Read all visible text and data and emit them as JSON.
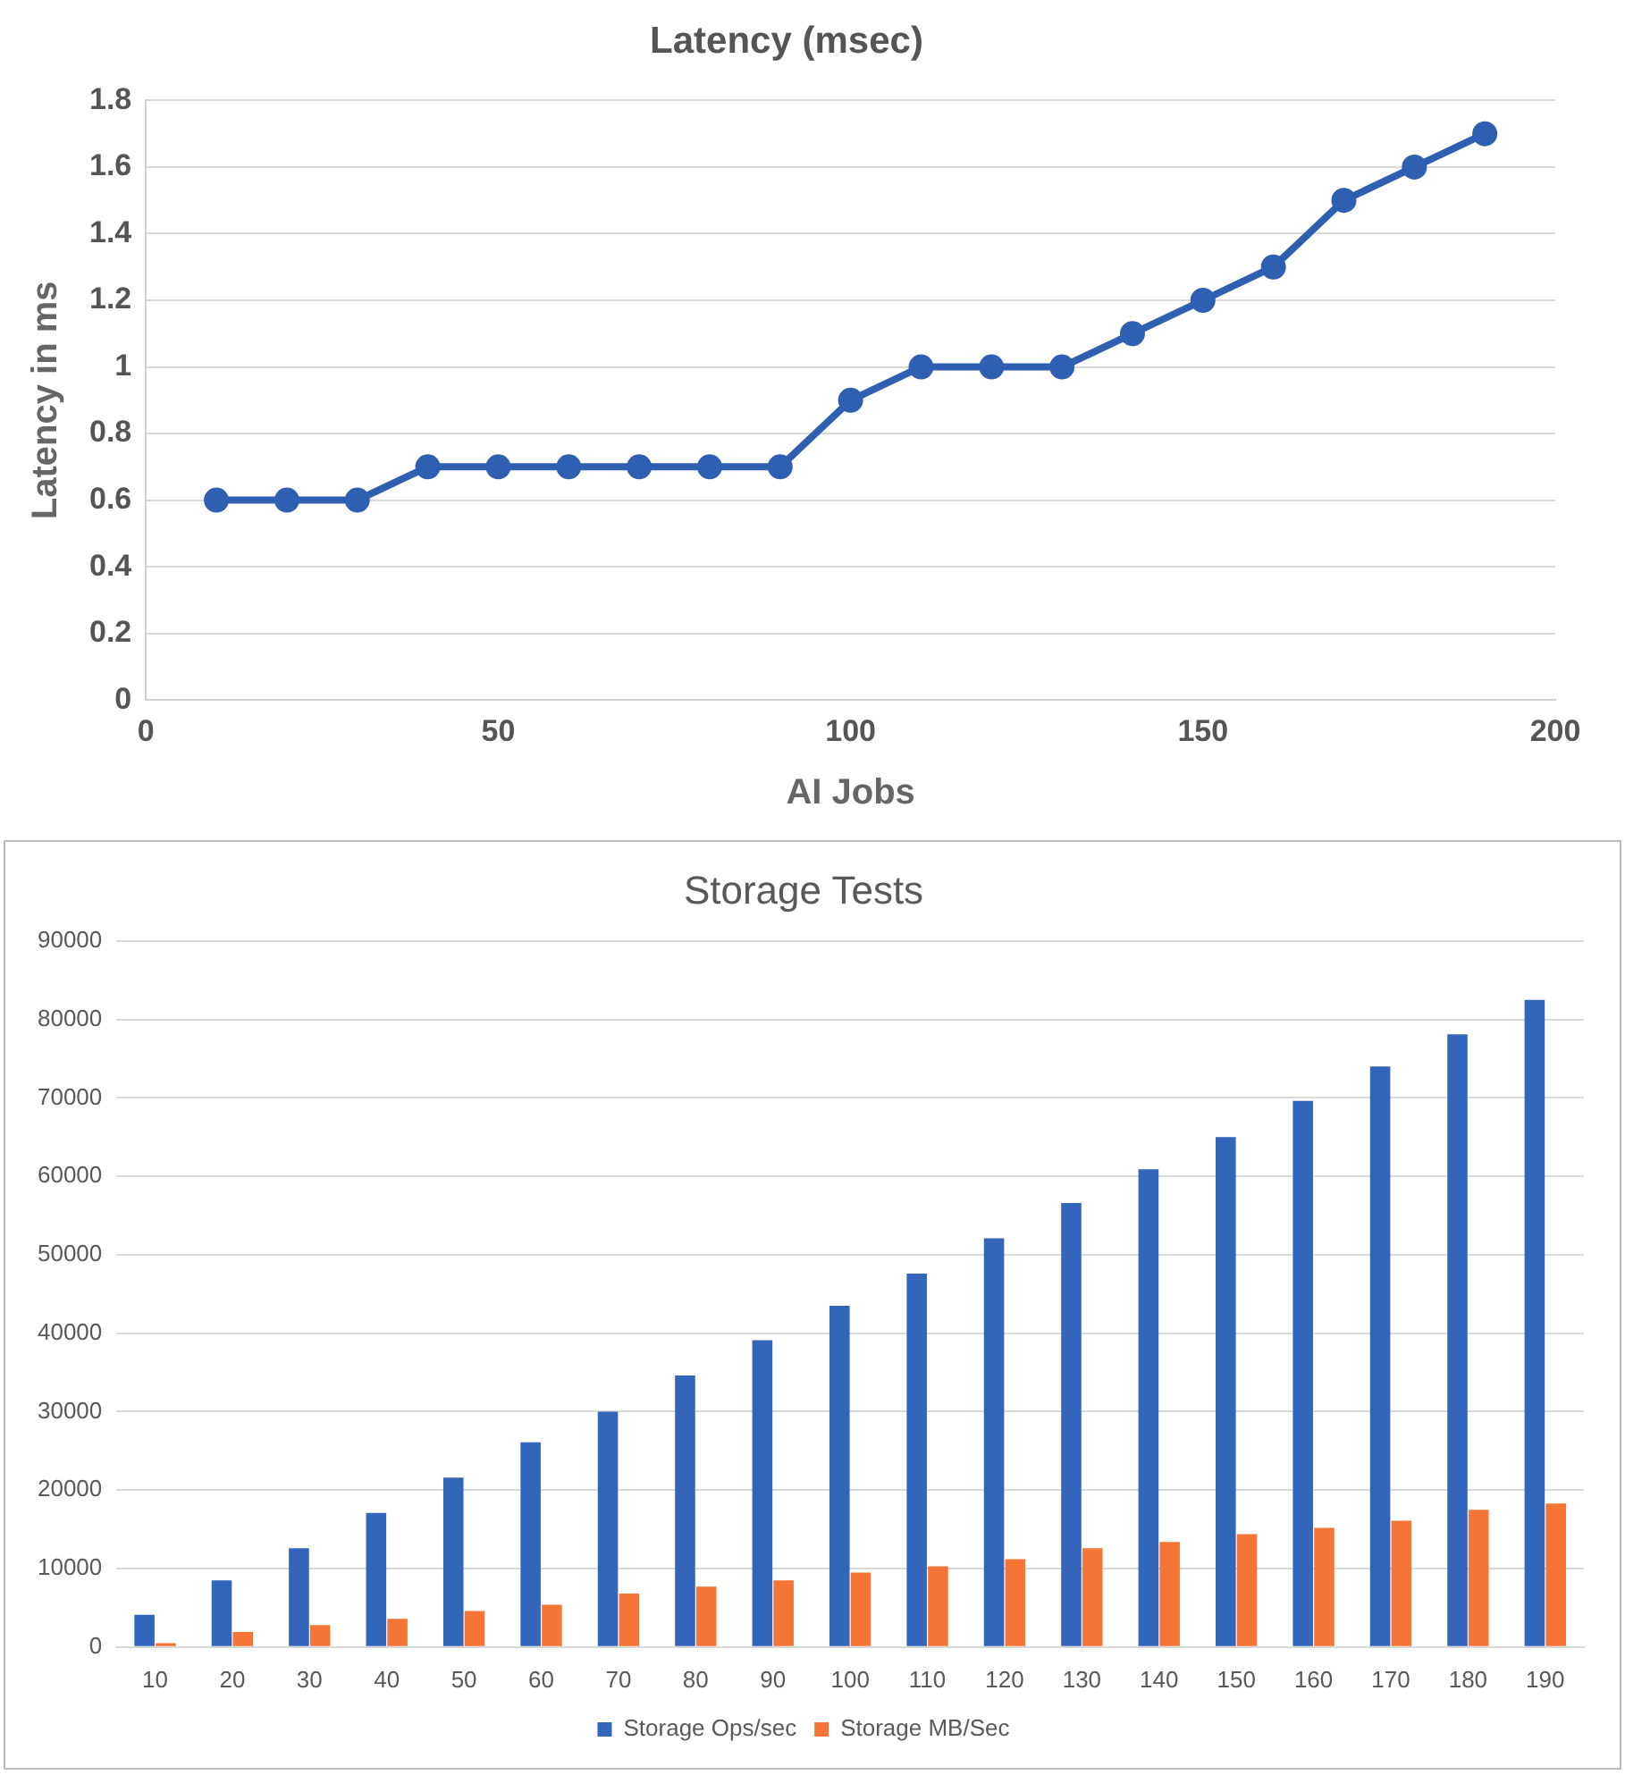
{
  "chart_data": [
    {
      "type": "line",
      "title": "Latency (msec)",
      "xlabel": "AI Jobs",
      "ylabel": "Latency in ms",
      "x": [
        10,
        20,
        30,
        40,
        50,
        60,
        70,
        80,
        90,
        100,
        110,
        120,
        130,
        140,
        150,
        160,
        170,
        180,
        190
      ],
      "values": [
        0.6,
        0.6,
        0.6,
        0.7,
        0.7,
        0.7,
        0.7,
        0.7,
        0.7,
        0.9,
        1.0,
        1.0,
        1.0,
        1.1,
        1.2,
        1.3,
        1.5,
        1.6,
        1.7
      ],
      "color": "#2e5fb0",
      "marker": "circle",
      "xlim": [
        0,
        200
      ],
      "xticks": [
        0,
        50,
        100,
        150,
        200
      ],
      "ylim": [
        0,
        1.8
      ],
      "yticks": [
        0,
        {
          "value": 0.2,
          "label": "0.2"
        },
        {
          "value": 0.4,
          "label": "0.4"
        },
        {
          "value": 0.6,
          "label": "0.6"
        },
        {
          "value": 0.8,
          "label": "0.8"
        },
        1,
        {
          "value": 1.2,
          "label": "1.2"
        },
        {
          "value": 1.4,
          "label": "1.4"
        },
        {
          "value": 1.6,
          "label": "1.6"
        },
        {
          "value": 1.8,
          "label": "1.8"
        }
      ],
      "grid": "y"
    },
    {
      "type": "bar",
      "title": "Storage Tests",
      "categories": [
        "10",
        "20",
        "30",
        "40",
        "50",
        "60",
        "70",
        "80",
        "90",
        "100",
        "110",
        "120",
        "130",
        "140",
        "150",
        "160",
        "170",
        "180",
        "190"
      ],
      "series": [
        {
          "name": "Storage Ops/sec",
          "color": "#3366bb",
          "values": [
            4100,
            8500,
            12600,
            17100,
            21600,
            26100,
            30000,
            34600,
            39100,
            43500,
            47600,
            52100,
            56600,
            60900,
            65000,
            69600,
            74000,
            78100,
            82500
          ]
        },
        {
          "name": "Storage MB/Sec",
          "color": "#f47535",
          "values": [
            500,
            1900,
            2800,
            3600,
            4600,
            5400,
            6800,
            7700,
            8500,
            9500,
            10300,
            11200,
            12600,
            13400,
            14400,
            15200,
            16100,
            17500,
            18300
          ]
        }
      ],
      "ylim": [
        0,
        90000
      ],
      "yticks": [
        0,
        10000,
        20000,
        30000,
        40000,
        50000,
        60000,
        70000,
        80000,
        90000
      ],
      "grid": "y",
      "legend": "bottom"
    }
  ]
}
